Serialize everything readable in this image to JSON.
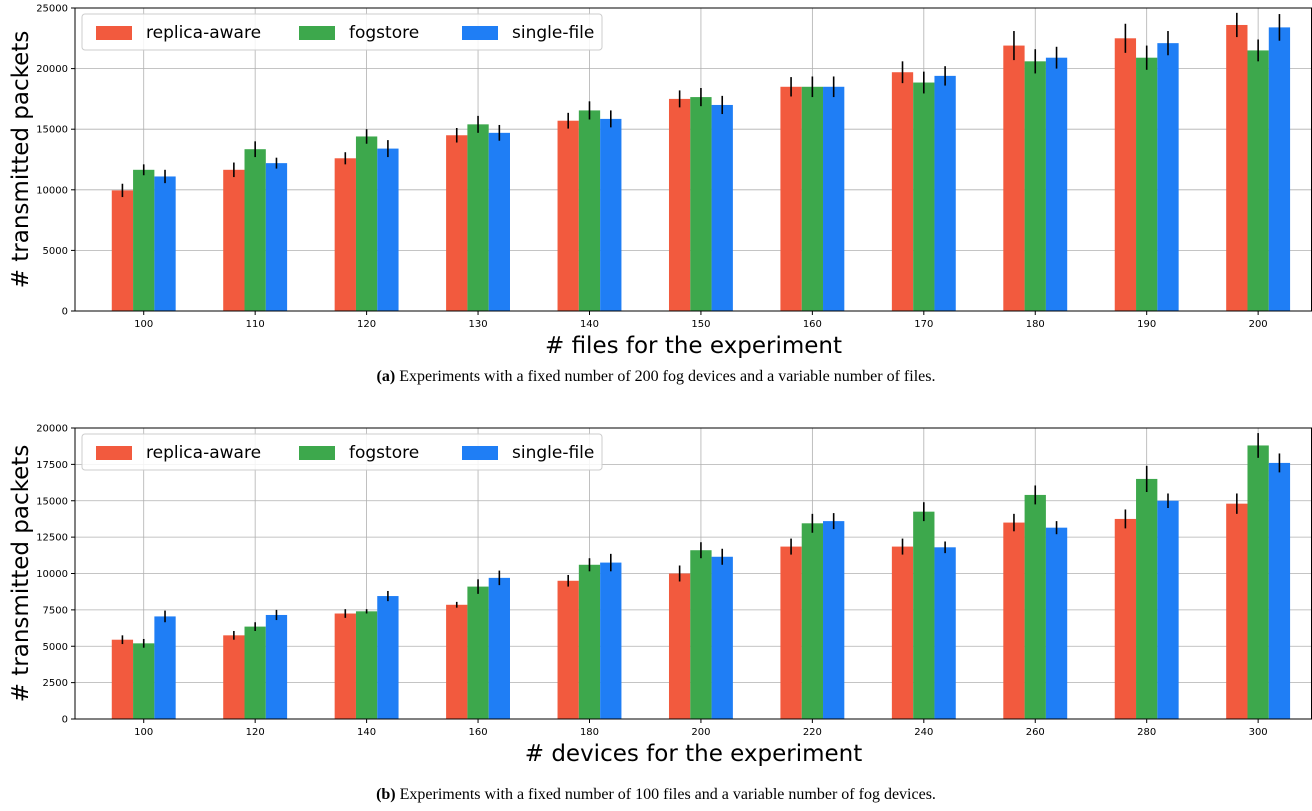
{
  "chart_data": [
    {
      "type": "bar",
      "xlabel": "# files for the experiment",
      "ylabel": "# transmitted packets",
      "ylim": [
        0,
        25000
      ],
      "yticks": [
        0,
        5000,
        10000,
        15000,
        20000,
        25000
      ],
      "grid": true,
      "legend_position": "top-left",
      "categories": [
        "100",
        "110",
        "120",
        "130",
        "140",
        "150",
        "160",
        "170",
        "180",
        "190",
        "200"
      ],
      "series": [
        {
          "name": "replica-aware",
          "color": "#f25a3e",
          "values": [
            9950,
            11650,
            12600,
            14500,
            15700,
            17500,
            18500,
            19700,
            21900,
            22500,
            23600
          ],
          "errors": [
            550,
            600,
            500,
            600,
            650,
            700,
            800,
            900,
            1200,
            1200,
            1000
          ]
        },
        {
          "name": "fogstore",
          "color": "#3da84c",
          "values": [
            11650,
            13350,
            14400,
            15400,
            16550,
            17650,
            18500,
            18850,
            20600,
            20900,
            21500
          ],
          "errors": [
            450,
            650,
            600,
            700,
            750,
            750,
            850,
            900,
            1000,
            1000,
            900
          ]
        },
        {
          "name": "single-file",
          "color": "#1f7ef5",
          "values": [
            11100,
            12200,
            13400,
            14700,
            15850,
            17000,
            18500,
            19400,
            20900,
            22100,
            23400
          ],
          "errors": [
            550,
            450,
            700,
            650,
            700,
            750,
            850,
            800,
            900,
            1000,
            1100
          ]
        }
      ]
    },
    {
      "type": "bar",
      "xlabel": "# devices for the experiment",
      "ylabel": "# transmitted packets",
      "ylim": [
        0,
        20000
      ],
      "yticks": [
        0,
        2500,
        5000,
        7500,
        10000,
        12500,
        15000,
        17500,
        20000
      ],
      "grid": true,
      "legend_position": "top-left",
      "categories": [
        "100",
        "120",
        "140",
        "160",
        "180",
        "200",
        "220",
        "240",
        "260",
        "280",
        "300"
      ],
      "series": [
        {
          "name": "replica-aware",
          "color": "#f25a3e",
          "values": [
            5450,
            5750,
            7250,
            7850,
            9500,
            10000,
            11850,
            11850,
            13500,
            13750,
            14800
          ],
          "errors": [
            300,
            300,
            300,
            200,
            400,
            550,
            550,
            550,
            600,
            650,
            700
          ]
        },
        {
          "name": "fogstore",
          "color": "#3da84c",
          "values": [
            5200,
            6350,
            7400,
            9100,
            10600,
            11600,
            13450,
            14250,
            15400,
            16500,
            18800
          ],
          "errors": [
            300,
            300,
            150,
            500,
            450,
            550,
            650,
            650,
            650,
            900,
            850
          ]
        },
        {
          "name": "single-file",
          "color": "#1f7ef5",
          "values": [
            7050,
            7150,
            8450,
            9700,
            10750,
            11150,
            13600,
            11800,
            13150,
            15000,
            17600
          ],
          "errors": [
            400,
            350,
            350,
            500,
            600,
            550,
            550,
            400,
            450,
            500,
            650
          ]
        }
      ]
    }
  ],
  "captions": [
    {
      "label": "(a)",
      "text": " Experiments with a fixed number of 200 fog devices and a variable number of files."
    },
    {
      "label": "(b)",
      "text": " Experiments with a fixed number of 100 files and a variable number of fog devices."
    }
  ]
}
